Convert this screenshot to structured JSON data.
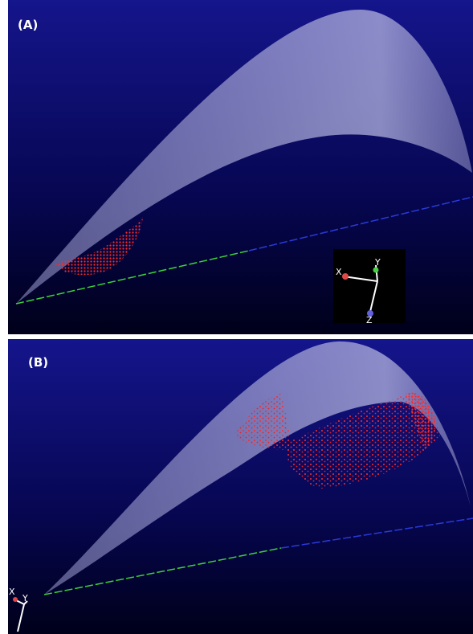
{
  "panels": [
    {
      "label": "(A)",
      "axes": [
        "X",
        "Y",
        "Z"
      ]
    },
    {
      "label": "(B)",
      "axes": [
        "X",
        "Y"
      ]
    }
  ]
}
